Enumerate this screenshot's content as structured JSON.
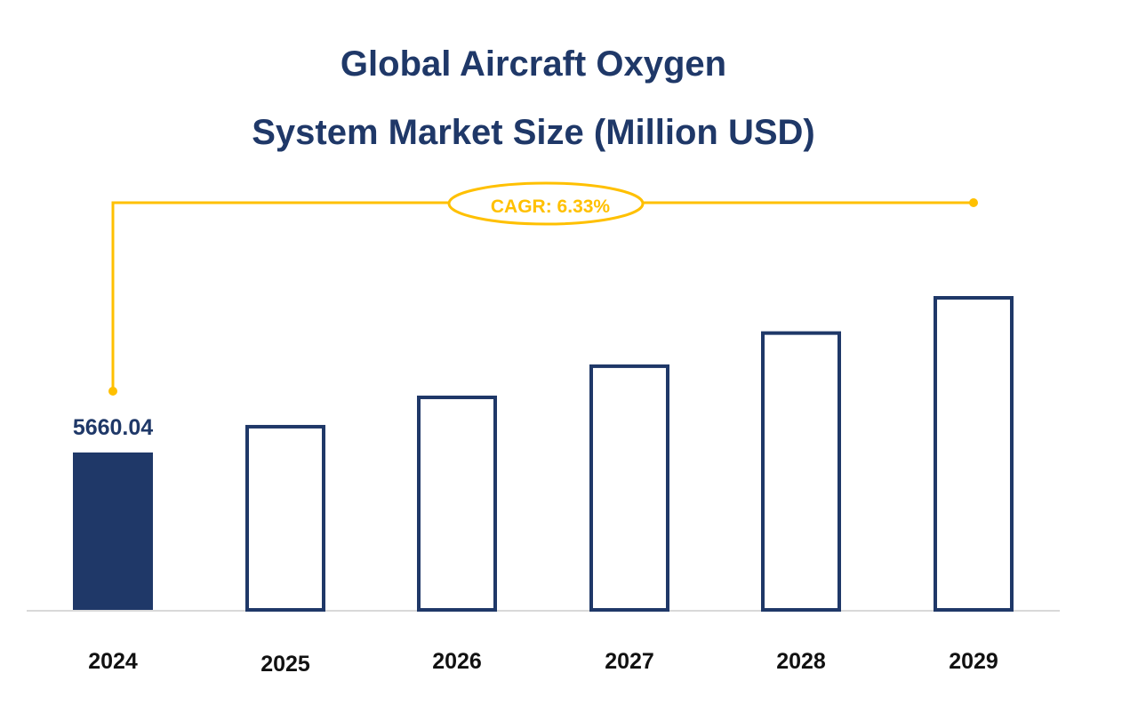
{
  "chart_data": {
    "type": "bar",
    "title_line1": "Global Aircraft Oxygen",
    "title_line2": "System Market Size (Million USD)",
    "categories": [
      "2024",
      "2025",
      "2026",
      "2027",
      "2028",
      "2029"
    ],
    "values": [
      5660.04,
      6018.33,
      6399.29,
      6804.36,
      7235.07,
      7693.05
    ],
    "data_labels": [
      "5660.04"
    ],
    "annotation": "CAGR: 6.33%",
    "ylim": [
      3615,
      7693.05
    ],
    "grid": false,
    "legend": "none",
    "colors": {
      "bar": "#1f3868",
      "annotation": "#ffc000",
      "axis": "#d9d9d9"
    },
    "highlight_first_bar": true
  }
}
